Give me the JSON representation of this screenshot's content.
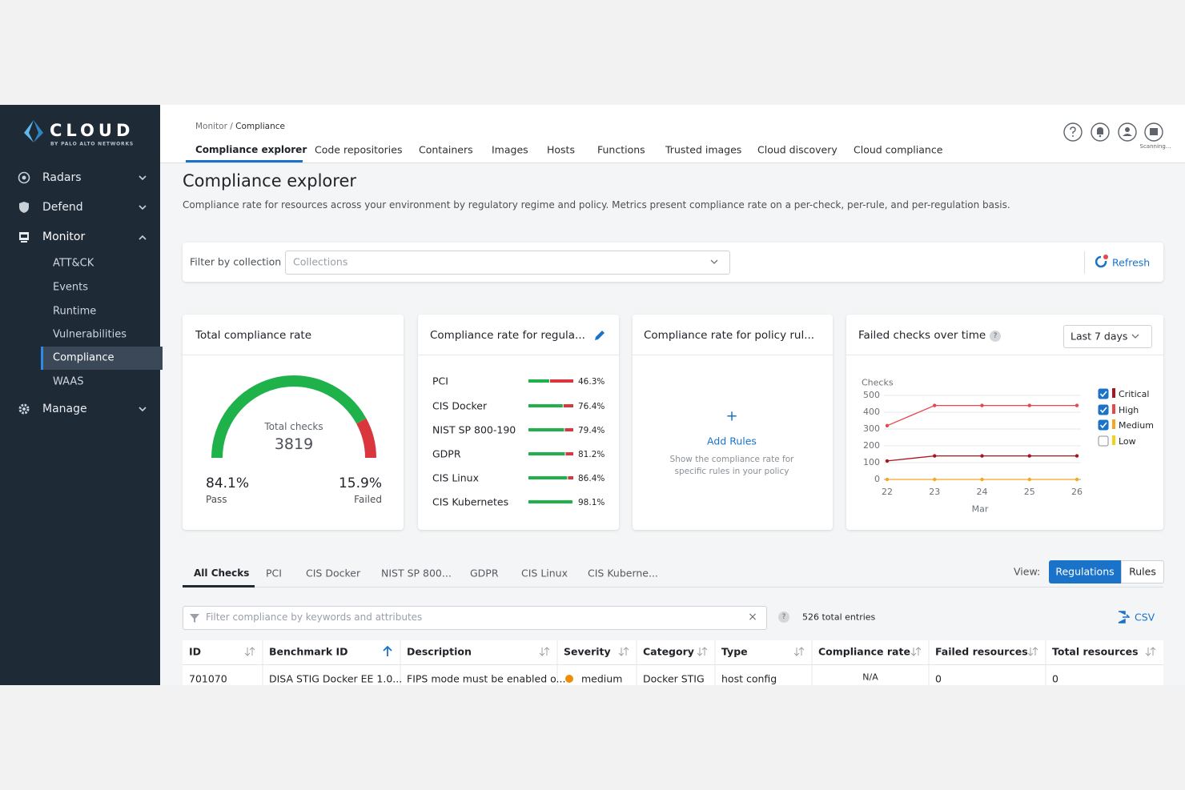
{
  "sidebar": {
    "logo": "CLOUD",
    "logo_sub": "BY PALO ALTO NETWORKS",
    "nav": [
      {
        "label": "Radars"
      },
      {
        "label": "Defend"
      },
      {
        "label": "Monitor",
        "children": [
          "ATT&CK",
          "Events",
          "Runtime",
          "Vulnerabilities",
          "Compliance",
          "WAAS"
        ]
      },
      {
        "label": "Manage"
      }
    ]
  },
  "header": {
    "breadcrumb": [
      "Monitor",
      "Compliance"
    ],
    "breadcrumb_separator": "/",
    "tabs": [
      "Compliance explorer",
      "Code repositories",
      "Containers",
      "Images",
      "Hosts",
      "Functions",
      "Trusted images",
      "Cloud discovery",
      "Cloud compliance"
    ],
    "status": "Scanning..."
  },
  "page": {
    "title": "Compliance explorer",
    "description": "Compliance rate for resources across your environment by regulatory regime and policy. Metrics present compliance rate on a per-check, per-rule, and per-regulation basis."
  },
  "filter": {
    "label": "Filter by collection",
    "placeholder": "Collections",
    "refresh": "Refresh"
  },
  "total_compliance": {
    "title": "Total compliance rate",
    "gauge_label": "Total checks",
    "total_checks": 3819,
    "pass": {
      "value": 84.1,
      "label": "84.1%"
    },
    "pass_label": "Pass",
    "failed": {
      "value": 15.9,
      "label": "15.9%"
    },
    "failed_label": "Failed"
  },
  "regulations": {
    "title": "Compliance rate for regula...",
    "rows": [
      {
        "name": "PCI",
        "value": 46.3,
        "label": "46.3%"
      },
      {
        "name": "CIS Docker",
        "value": 76.4,
        "label": "76.4%"
      },
      {
        "name": "NIST SP 800-190",
        "value": 79.4,
        "label": "79.4%"
      },
      {
        "name": "GDPR",
        "value": 81.2,
        "label": "81.2%"
      },
      {
        "name": "CIS Linux",
        "value": 86.4,
        "label": "86.4%"
      },
      {
        "name": "CIS Kubernetes",
        "value": 98.1,
        "label": "98.1%"
      }
    ]
  },
  "policy_rules": {
    "title": "Compliance rate for policy rul...",
    "icon": "+",
    "action": "Add Rules",
    "help": "Show the compliance rate for specific rules in your policy"
  },
  "chart_data": {
    "type": "line",
    "title": "Failed checks over time",
    "help": "?",
    "range": "Last 7 days",
    "y_label": "Checks",
    "x_label": "Mar",
    "categories": [
      "22",
      "23",
      "24",
      "25",
      "26"
    ],
    "ylim": [
      0,
      500
    ],
    "yticks": [
      0,
      100,
      200,
      300,
      400,
      500
    ],
    "grid": true,
    "series": [
      {
        "name": "Critical",
        "color": "#a8141f",
        "checked": true,
        "values": [
          110,
          140,
          140,
          140,
          140
        ]
      },
      {
        "name": "High",
        "color": "#e5484d",
        "checked": true,
        "values": [
          320,
          440,
          440,
          440,
          440
        ]
      },
      {
        "name": "Medium",
        "color": "#f5a623",
        "checked": true,
        "values": [
          0,
          0,
          0,
          0,
          0
        ]
      },
      {
        "name": "Low",
        "color": "#f2d21b",
        "checked": false,
        "values": [
          null,
          null,
          null,
          null,
          null
        ]
      }
    ]
  },
  "results": {
    "tabs": [
      "All Checks",
      "PCI",
      "CIS Docker",
      "NIST SP 800...",
      "GDPR",
      "CIS Linux",
      "CIS Kuberne..."
    ],
    "view_label": "View:",
    "view_options": [
      "Regulations",
      "Rules"
    ],
    "search_placeholder": "Filter compliance by keywords and attributes",
    "clear": "×",
    "help": "?",
    "total_entries": "526 total entries",
    "export": "CSV",
    "columns": [
      "ID",
      "Benchmark ID",
      "Description",
      "Severity",
      "Category",
      "Type",
      "Compliance rate",
      "Failed resources",
      "Total resources"
    ],
    "rows": [
      [
        "701070",
        "DISA STIG Docker EE 1.0...",
        "FIPS mode must be enabled o...",
        "medium",
        "Docker STIG",
        "host config",
        "N/A",
        "0",
        "0"
      ]
    ]
  }
}
